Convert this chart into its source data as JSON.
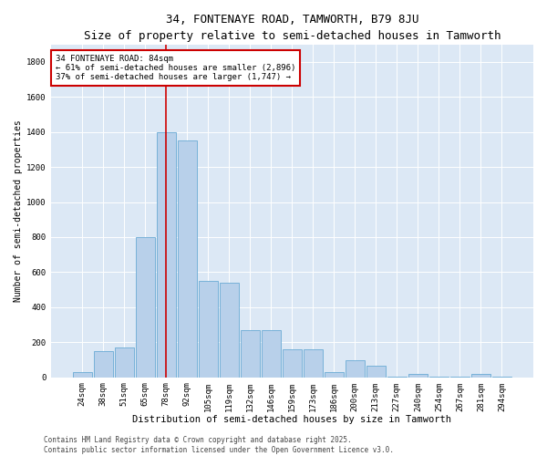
{
  "title": "34, FONTENAYE ROAD, TAMWORTH, B79 8JU",
  "subtitle": "Size of property relative to semi-detached houses in Tamworth",
  "xlabel": "Distribution of semi-detached houses by size in Tamworth",
  "ylabel": "Number of semi-detached properties",
  "categories": [
    "24sqm",
    "38sqm",
    "51sqm",
    "65sqm",
    "78sqm",
    "92sqm",
    "105sqm",
    "119sqm",
    "132sqm",
    "146sqm",
    "159sqm",
    "173sqm",
    "186sqm",
    "200sqm",
    "213sqm",
    "227sqm",
    "240sqm",
    "254sqm",
    "267sqm",
    "281sqm",
    "294sqm"
  ],
  "values": [
    28,
    148,
    168,
    800,
    1400,
    1350,
    550,
    540,
    268,
    268,
    158,
    158,
    28,
    95,
    65,
    5,
    20,
    5,
    5,
    20,
    5
  ],
  "bar_color": "#b8d0ea",
  "bar_edge_color": "#6aaad4",
  "vline_color": "#cc0000",
  "vline_x": 4,
  "annotation_text": "34 FONTENAYE ROAD: 84sqm\n← 61% of semi-detached houses are smaller (2,896)\n37% of semi-detached houses are larger (1,747) →",
  "annotation_box_facecolor": "#ffffff",
  "annotation_box_edgecolor": "#cc0000",
  "ylim": [
    0,
    1900
  ],
  "yticks": [
    0,
    200,
    400,
    600,
    800,
    1000,
    1200,
    1400,
    1600,
    1800
  ],
  "background_color": "#dce8f5",
  "title_fontsize": 9,
  "subtitle_fontsize": 8,
  "xlabel_fontsize": 7.5,
  "ylabel_fontsize": 7,
  "tick_fontsize": 6.5,
  "annotation_fontsize": 6.5,
  "footer_fontsize": 5.5,
  "footer_text": "Contains HM Land Registry data © Crown copyright and database right 2025.\nContains public sector information licensed under the Open Government Licence v3.0."
}
